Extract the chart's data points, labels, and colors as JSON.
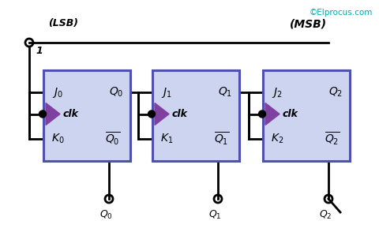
{
  "bg_color": "#ffffff",
  "box_color": "#5050b0",
  "box_fill": "#ccd4f0",
  "clk_arrow_color": "#8040a0",
  "wire_color": "#000000",
  "text_color": "#000000",
  "copyright_color": "#00aaaa",
  "lsb_label": "(LSB)",
  "msb_label": "(MSB)",
  "copyright": "©Elprocus.com",
  "figsize": [
    4.8,
    2.94
  ],
  "dpi": 100
}
